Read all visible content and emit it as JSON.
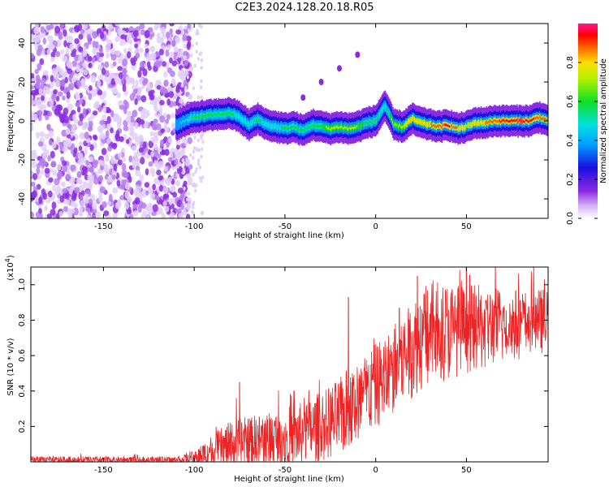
{
  "title": "C2E3.2024.128.20.18.R05",
  "colors": {
    "snr_line": "#ee2222",
    "frame": "#000000"
  },
  "chart_data": [
    {
      "type": "heatmap",
      "xlabel": "Height of straight line (km)",
      "ylabel": "Frequency (Hz)",
      "xlim": [
        -190,
        95
      ],
      "ylim": [
        -50,
        50
      ],
      "x_ticks": [
        "-150",
        "-100",
        "-50",
        "0",
        "50"
      ],
      "y_ticks": [
        "40",
        "20",
        "0",
        "-20",
        "-40"
      ],
      "colorbar": {
        "label": "Normalized spectral amplitude",
        "range": [
          0.0,
          1.0
        ],
        "ticks": [
          "0.0",
          "0.2",
          "0.4",
          "0.6",
          "0.8"
        ]
      },
      "noise_region_x": [
        -190,
        -105
      ],
      "ridge": {
        "x": [
          -110,
          -100,
          -90,
          -80,
          -75,
          -70,
          -65,
          -60,
          -55,
          -50,
          -45,
          -40,
          -35,
          -30,
          -25,
          -20,
          -15,
          -10,
          -5,
          0,
          5,
          10,
          15,
          20,
          25,
          30,
          35,
          40,
          45,
          50,
          55,
          60,
          65,
          70,
          75,
          80,
          85,
          90,
          95
        ],
        "frequency": [
          -2,
          2,
          3,
          4,
          2,
          -2,
          1,
          -2,
          -3,
          -4,
          -3,
          -5,
          -2,
          -3,
          -4,
          -3,
          -4,
          -3,
          -1,
          0,
          8,
          -2,
          -3,
          1,
          -1,
          -2,
          -3,
          -2,
          -4,
          -3,
          -1,
          -1,
          0,
          0,
          0,
          0,
          0,
          2,
          0
        ],
        "amplitude": [
          0.35,
          0.5,
          0.55,
          0.5,
          0.45,
          0.45,
          0.5,
          0.45,
          0.45,
          0.5,
          0.55,
          0.5,
          0.5,
          0.55,
          0.65,
          0.6,
          0.7,
          0.6,
          0.55,
          0.5,
          0.45,
          0.65,
          0.7,
          0.75,
          0.8,
          0.8,
          0.85,
          0.9,
          0.8,
          0.7,
          0.75,
          0.8,
          0.85,
          0.9,
          0.9,
          0.95,
          0.9,
          0.85,
          0.8
        ]
      },
      "streak": {
        "x": [
          -40,
          -30,
          -20,
          -10
        ],
        "frequency": [
          12,
          20,
          27,
          34
        ]
      }
    },
    {
      "type": "line",
      "xlabel": "Height of straight line (km)",
      "ylabel": "SNR (10 * v/v)",
      "yscale_label": "(x10",
      "yscale_exp": "4",
      "xlim": [
        -190,
        95
      ],
      "ylim": [
        0,
        1.1
      ],
      "x_ticks": [
        "-150",
        "-100",
        "-50",
        "0",
        "50"
      ],
      "y_ticks": [
        "1.0",
        "0.8",
        "0.6",
        "0.4",
        "0.2"
      ],
      "envelope": {
        "x": [
          -190,
          -110,
          -100,
          -95,
          -90,
          -80,
          -70,
          -60,
          -50,
          -40,
          -30,
          -20,
          -15,
          -10,
          -5,
          0,
          5,
          10,
          15,
          20,
          25,
          30,
          40,
          50,
          60,
          70,
          80,
          95
        ],
        "mean": [
          0.01,
          0.01,
          0.02,
          0.04,
          0.06,
          0.09,
          0.11,
          0.12,
          0.14,
          0.16,
          0.2,
          0.25,
          0.3,
          0.33,
          0.38,
          0.43,
          0.47,
          0.52,
          0.58,
          0.64,
          0.7,
          0.73,
          0.74,
          0.75,
          0.76,
          0.77,
          0.78,
          0.8
        ],
        "spread": [
          0.02,
          0.02,
          0.04,
          0.07,
          0.1,
          0.14,
          0.15,
          0.16,
          0.17,
          0.18,
          0.2,
          0.22,
          0.24,
          0.24,
          0.24,
          0.24,
          0.25,
          0.26,
          0.27,
          0.28,
          0.3,
          0.3,
          0.28,
          0.25,
          0.24,
          0.22,
          0.2,
          0.18
        ]
      },
      "spikes": [
        {
          "x": -75,
          "value": 0.45
        },
        {
          "x": -45,
          "value": 0.4
        },
        {
          "x": -15,
          "value": 0.93
        },
        {
          "x": 13,
          "value": 0.87
        },
        {
          "x": 23,
          "value": 1.05
        },
        {
          "x": 50,
          "value": 1.1
        }
      ]
    }
  ]
}
